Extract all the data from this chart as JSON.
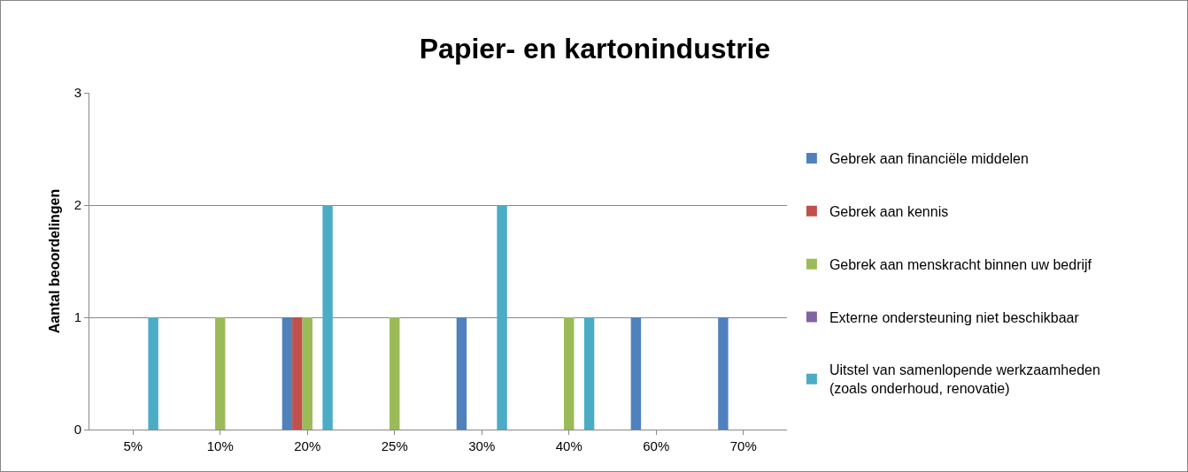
{
  "chart_data": {
    "type": "bar",
    "title": "Papier- en kartonindustrie",
    "ylabel": "Aantal beoordelingen",
    "categories": [
      "5%",
      "10%",
      "20%",
      "25%",
      "30%",
      "40%",
      "60%",
      "70%"
    ],
    "series": [
      {
        "name": "Gebrek aan financiële middelen",
        "color": "#4f81bd",
        "values": [
          0,
          0,
          1,
          0,
          1,
          0,
          1,
          1
        ]
      },
      {
        "name": "Gebrek aan kennis",
        "color": "#c0504d",
        "values": [
          0,
          0,
          1,
          0,
          0,
          0,
          0,
          0
        ]
      },
      {
        "name": "Gebrek aan menskracht binnen uw bedrijf",
        "color": "#9bbb59",
        "values": [
          0,
          1,
          1,
          1,
          0,
          1,
          0,
          0
        ]
      },
      {
        "name": "Externe ondersteuning niet beschikbaar",
        "color": "#8064a2",
        "values": [
          0,
          0,
          0,
          0,
          0,
          0,
          0,
          0
        ]
      },
      {
        "name": "Uitstel van samenlopende werkzaamheden\n(zoals onderhoud, renovatie)",
        "color": "#4bacc6",
        "values": [
          1,
          0,
          2,
          0,
          2,
          1,
          0,
          0
        ]
      }
    ],
    "ylim": [
      0,
      3
    ],
    "yticks": [
      0,
      1,
      2,
      3
    ],
    "grid": "y",
    "legend": "right"
  }
}
